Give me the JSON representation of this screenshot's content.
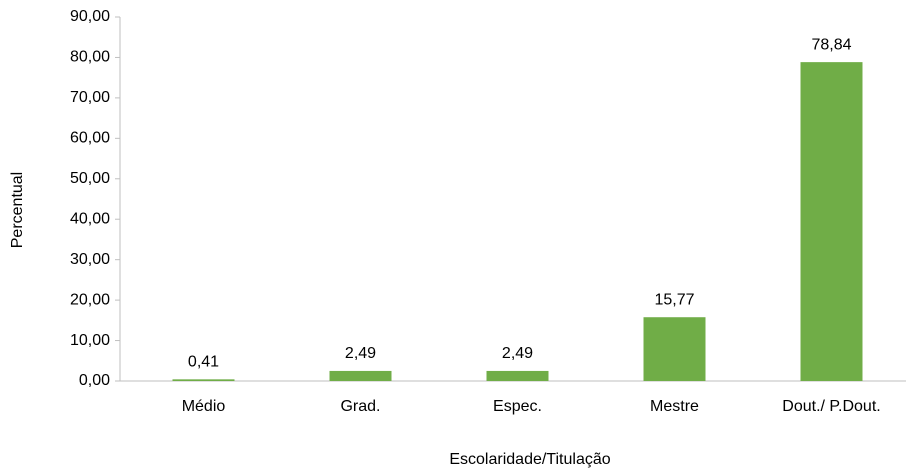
{
  "chart_data": {
    "type": "bar",
    "x_label": "Escolaridade/Titulação",
    "y_label": "Percentual",
    "categories": [
      "Médio",
      "Grad.",
      "Espec.",
      "Mestre",
      "Dout./ P.Dout."
    ],
    "values": [
      0.41,
      2.49,
      2.49,
      15.77,
      78.84
    ],
    "value_labels": [
      "0,41",
      "2,49",
      "2,49",
      "15,77",
      "78,84"
    ],
    "color": "#70ad47",
    "ylim": [
      0,
      90
    ],
    "yticks": [
      {
        "value": 0,
        "label": "0,00"
      },
      {
        "value": 10,
        "label": "10,00"
      },
      {
        "value": 20,
        "label": "20,00"
      },
      {
        "value": 30,
        "label": "30,00"
      },
      {
        "value": 40,
        "label": "40,00"
      },
      {
        "value": 50,
        "label": "50,00"
      },
      {
        "value": 60,
        "label": "60,00"
      },
      {
        "value": 70,
        "label": "70,00"
      },
      {
        "value": 80,
        "label": "80,00"
      },
      {
        "value": 90,
        "label": "90,00"
      }
    ],
    "grid": false
  }
}
